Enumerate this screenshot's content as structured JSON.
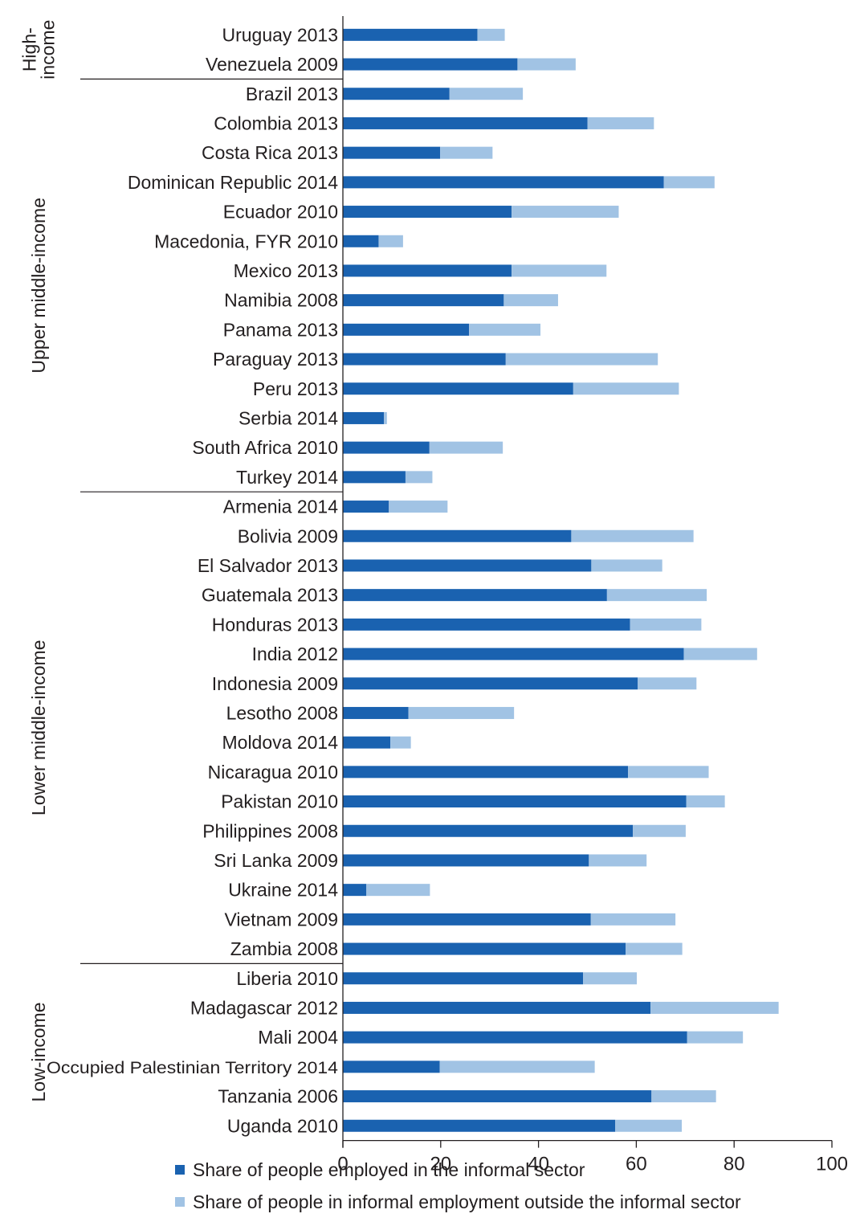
{
  "chart_data": {
    "type": "bar",
    "orientation": "horizontal",
    "stacked": true,
    "title": "",
    "xlabel": "",
    "ylabel": "",
    "xlim": [
      0,
      100
    ],
    "xticks": [
      0,
      20,
      40,
      60,
      80,
      100
    ],
    "grid": false,
    "legend_position": "bottom",
    "categories": [
      "Uruguay 2013",
      "Venezuela 2009",
      "Brazil 2013",
      "Colombia 2013",
      "Costa Rica 2013",
      "Dominican Republic 2014",
      "Ecuador 2010",
      "Macedonia, FYR 2010",
      "Mexico 2013",
      "Namibia 2008",
      "Panama 2013",
      "Paraguay 2013",
      "Peru 2013",
      "Serbia 2014",
      "South Africa 2010",
      "Turkey 2014",
      "Armenia 2014",
      "Bolivia 2009",
      "El Salvador 2013",
      "Guatemala 2013",
      "Honduras 2013",
      "India 2012",
      "Indonesia 2009",
      "Lesotho 2008",
      "Moldova 2014",
      "Nicaragua 2010",
      "Pakistan 2010",
      "Philippines 2008",
      "Sri Lanka 2009",
      "Ukraine 2014",
      "Vietnam 2009",
      "Zambia 2008",
      "Liberia 2010",
      "Madagascar 2012",
      "Mali 2004",
      "Occupied Palestinian Territory 2014",
      "Tanzania 2006",
      "Uganda 2010"
    ],
    "groups": [
      {
        "label": "High-\nincome",
        "start": 0,
        "end": 1
      },
      {
        "label": "Upper middle-income",
        "start": 2,
        "end": 15
      },
      {
        "label": "Lower middle-income",
        "start": 16,
        "end": 31
      },
      {
        "label": "Low-income",
        "start": 32,
        "end": 37
      }
    ],
    "series": [
      {
        "name": "Share of people employed in the informal sector",
        "color": "#1a62b0",
        "values": [
          27.5,
          35.7,
          21.8,
          50.0,
          19.9,
          65.6,
          34.5,
          7.3,
          34.5,
          32.9,
          25.8,
          33.3,
          47.1,
          8.4,
          17.7,
          12.8,
          9.4,
          46.7,
          50.8,
          54.0,
          58.7,
          69.7,
          60.3,
          13.4,
          9.7,
          58.3,
          70.2,
          59.3,
          50.3,
          4.8,
          50.7,
          57.8,
          49.1,
          62.9,
          70.4,
          19.8,
          63.1,
          55.7
        ]
      },
      {
        "name": "Share of people in informal employment outside the informal sector",
        "color": "#a1c3e4",
        "values": [
          5.6,
          11.9,
          15.0,
          13.6,
          10.7,
          10.4,
          21.9,
          5.0,
          19.4,
          11.1,
          14.6,
          31.1,
          21.6,
          0.6,
          15.0,
          5.5,
          12.0,
          25.0,
          14.5,
          20.4,
          14.6,
          15.0,
          12.0,
          21.6,
          4.2,
          16.5,
          7.9,
          10.8,
          11.8,
          13.0,
          17.3,
          11.6,
          11.0,
          26.2,
          11.4,
          31.7,
          13.2,
          13.6
        ]
      }
    ]
  }
}
